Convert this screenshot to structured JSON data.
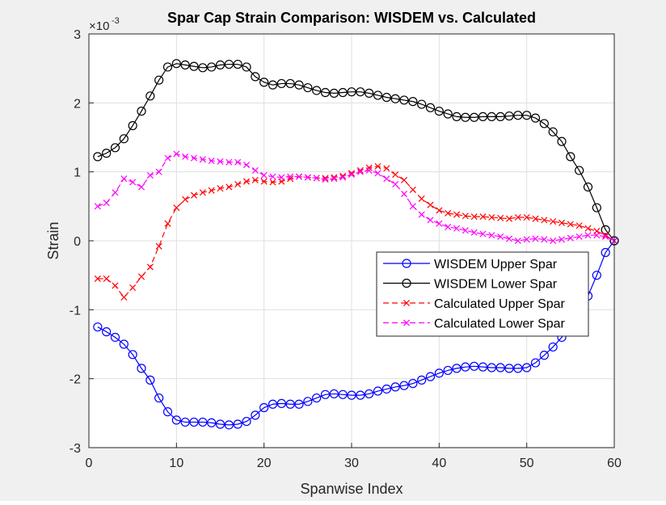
{
  "chart_data": {
    "type": "line",
    "title": "Spar Cap Strain Comparison: WISDEM vs. Calculated",
    "xlabel": "Spanwise Index",
    "ylabel": "Strain",
    "exponent": {
      "base": "×10",
      "power": "-3"
    },
    "xlim": [
      0,
      60
    ],
    "ylim": [
      -3,
      3
    ],
    "xticks": [
      "0",
      "10",
      "20",
      "30",
      "40",
      "50",
      "60"
    ],
    "yticks": [
      "-3",
      "-2",
      "-1",
      "0",
      "1",
      "2",
      "3"
    ],
    "grid": true,
    "legend_position": "center-right",
    "x": [
      1,
      2,
      3,
      4,
      5,
      6,
      7,
      8,
      9,
      10,
      11,
      12,
      13,
      14,
      15,
      16,
      17,
      18,
      19,
      20,
      21,
      22,
      23,
      24,
      25,
      26,
      27,
      28,
      29,
      30,
      31,
      32,
      33,
      34,
      35,
      36,
      37,
      38,
      39,
      40,
      41,
      42,
      43,
      44,
      45,
      46,
      47,
      48,
      49,
      50,
      51,
      52,
      53,
      54,
      55,
      56,
      57,
      58,
      59,
      60
    ],
    "series": [
      {
        "name": "WISDEM Upper Spar",
        "color": "#0000ff",
        "marker": "circle",
        "dash": "solid",
        "values": [
          -1.25,
          -1.32,
          -1.4,
          -1.5,
          -1.65,
          -1.85,
          -2.02,
          -2.28,
          -2.48,
          -2.6,
          -2.63,
          -2.63,
          -2.63,
          -2.64,
          -2.66,
          -2.67,
          -2.66,
          -2.62,
          -2.53,
          -2.42,
          -2.37,
          -2.36,
          -2.37,
          -2.37,
          -2.33,
          -2.28,
          -2.23,
          -2.22,
          -2.23,
          -2.24,
          -2.24,
          -2.22,
          -2.18,
          -2.15,
          -2.12,
          -2.1,
          -2.07,
          -2.02,
          -1.97,
          -1.92,
          -1.88,
          -1.85,
          -1.83,
          -1.82,
          -1.83,
          -1.84,
          -1.84,
          -1.85,
          -1.85,
          -1.84,
          -1.77,
          -1.66,
          -1.54,
          -1.4,
          -1.22,
          -1.02,
          -0.8,
          -0.5,
          -0.17,
          0.0
        ]
      },
      {
        "name": "WISDEM Lower Spar",
        "color": "#000000",
        "marker": "circle",
        "dash": "solid",
        "values": [
          1.22,
          1.27,
          1.35,
          1.48,
          1.67,
          1.88,
          2.1,
          2.33,
          2.52,
          2.57,
          2.55,
          2.53,
          2.51,
          2.52,
          2.55,
          2.56,
          2.56,
          2.52,
          2.38,
          2.3,
          2.26,
          2.28,
          2.28,
          2.26,
          2.22,
          2.18,
          2.15,
          2.14,
          2.15,
          2.16,
          2.16,
          2.14,
          2.11,
          2.08,
          2.06,
          2.04,
          2.02,
          1.98,
          1.93,
          1.88,
          1.84,
          1.8,
          1.79,
          1.79,
          1.8,
          1.8,
          1.8,
          1.81,
          1.82,
          1.82,
          1.78,
          1.7,
          1.58,
          1.44,
          1.22,
          1.02,
          0.78,
          0.48,
          0.16,
          0.0
        ]
      },
      {
        "name": "Calculated Upper Spar",
        "color": "#ff0000",
        "marker": "x",
        "dash": "dashed",
        "values": [
          -0.55,
          -0.55,
          -0.65,
          -0.82,
          -0.68,
          -0.52,
          -0.38,
          -0.08,
          0.25,
          0.48,
          0.6,
          0.66,
          0.7,
          0.73,
          0.76,
          0.78,
          0.82,
          0.86,
          0.88,
          0.86,
          0.85,
          0.86,
          0.9,
          0.93,
          0.92,
          0.91,
          0.91,
          0.92,
          0.94,
          0.98,
          1.02,
          1.06,
          1.08,
          1.05,
          0.96,
          0.88,
          0.74,
          0.61,
          0.52,
          0.44,
          0.4,
          0.38,
          0.36,
          0.35,
          0.35,
          0.34,
          0.33,
          0.32,
          0.34,
          0.34,
          0.32,
          0.3,
          0.28,
          0.26,
          0.24,
          0.22,
          0.18,
          0.14,
          0.08,
          0.0
        ]
      },
      {
        "name": "Calculated Lower Spar",
        "color": "#ff00ff",
        "marker": "x",
        "dash": "dashed",
        "values": [
          0.5,
          0.55,
          0.7,
          0.9,
          0.85,
          0.78,
          0.95,
          1.0,
          1.2,
          1.26,
          1.22,
          1.2,
          1.18,
          1.16,
          1.15,
          1.14,
          1.14,
          1.1,
          1.02,
          0.95,
          0.93,
          0.92,
          0.93,
          0.93,
          0.92,
          0.91,
          0.89,
          0.9,
          0.92,
          0.96,
          1.0,
          1.02,
          0.98,
          0.9,
          0.82,
          0.68,
          0.5,
          0.38,
          0.3,
          0.25,
          0.2,
          0.18,
          0.15,
          0.12,
          0.1,
          0.08,
          0.06,
          0.03,
          0.0,
          0.02,
          0.03,
          0.02,
          0.0,
          0.02,
          0.04,
          0.06,
          0.08,
          0.08,
          0.06,
          0.0
        ]
      }
    ]
  }
}
